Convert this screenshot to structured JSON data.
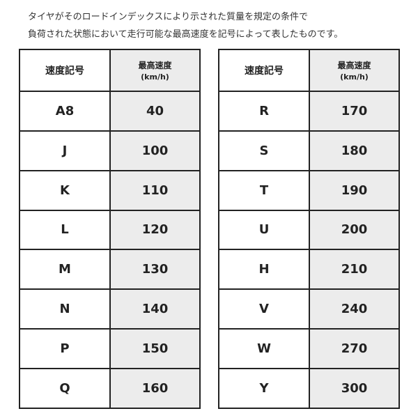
{
  "intro": {
    "line1": "タイヤがそのロードインデックスにより示された質量を規定の条件で",
    "line2": "負荷された状態において走行可能な最高速度を記号によって表したものです。"
  },
  "headers": {
    "symbol": "速度記号",
    "speed": "最高速度",
    "unit": "(km/h)"
  },
  "left_rows": [
    {
      "symbol": "A8",
      "speed": "40"
    },
    {
      "symbol": "J",
      "speed": "100"
    },
    {
      "symbol": "K",
      "speed": "110"
    },
    {
      "symbol": "L",
      "speed": "120"
    },
    {
      "symbol": "M",
      "speed": "130"
    },
    {
      "symbol": "N",
      "speed": "140"
    },
    {
      "symbol": "P",
      "speed": "150"
    },
    {
      "symbol": "Q",
      "speed": "160"
    }
  ],
  "right_rows": [
    {
      "symbol": "R",
      "speed": "170"
    },
    {
      "symbol": "S",
      "speed": "180"
    },
    {
      "symbol": "T",
      "speed": "190"
    },
    {
      "symbol": "U",
      "speed": "200"
    },
    {
      "symbol": "H",
      "speed": "210"
    },
    {
      "symbol": "V",
      "speed": "240"
    },
    {
      "symbol": "W",
      "speed": "270"
    },
    {
      "symbol": "Y",
      "speed": "300"
    }
  ],
  "colors": {
    "speed_column_bg": "#ececec",
    "border": "#222222"
  }
}
